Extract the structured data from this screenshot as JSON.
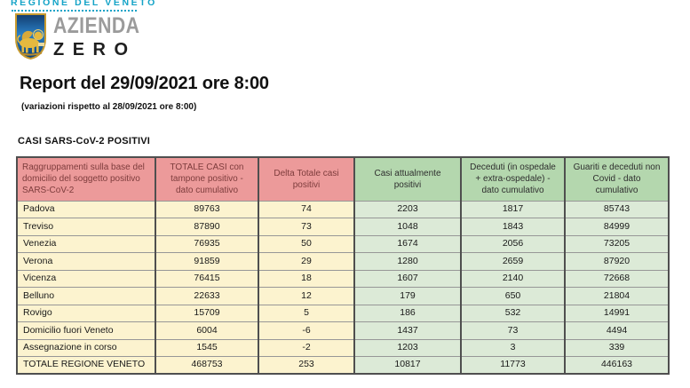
{
  "logo": {
    "region_label": "REGIONE DEL VENETO",
    "org_line1": "AZIENDA",
    "org_line2": "ZERO"
  },
  "header": {
    "title": "Report del 29/09/2021 ore 8:00",
    "subtitle": "(variazioni rispetto al 28/09/2021 ore 8:00)"
  },
  "section_title": "CASI SARS-CoV-2 POSITIVI",
  "table": {
    "columns": [
      {
        "label": "Raggruppamenti sulla base del domicilio del soggetto positivo SARS-CoV-2",
        "group": "red"
      },
      {
        "label": "TOTALE CASI con tampone positivo -dato cumulativo",
        "group": "red"
      },
      {
        "label": "Delta Totale casi positivi",
        "group": "red"
      },
      {
        "label": "Casi attualmente positivi",
        "group": "green"
      },
      {
        "label": "Deceduti (in ospedale + extra-ospedale) -dato cumulativo",
        "group": "green"
      },
      {
        "label": "Guariti e deceduti non Covid - dato cumulativo",
        "group": "green"
      }
    ],
    "rows": [
      {
        "name": "Padova",
        "values": [
          "89763",
          "74",
          "2203",
          "1817",
          "85743"
        ]
      },
      {
        "name": "Treviso",
        "values": [
          "87890",
          "73",
          "1048",
          "1843",
          "84999"
        ]
      },
      {
        "name": "Venezia",
        "values": [
          "76935",
          "50",
          "1674",
          "2056",
          "73205"
        ]
      },
      {
        "name": "Verona",
        "values": [
          "91859",
          "29",
          "1280",
          "2659",
          "87920"
        ]
      },
      {
        "name": "Vicenza",
        "values": [
          "76415",
          "18",
          "1607",
          "2140",
          "72668"
        ]
      },
      {
        "name": "Belluno",
        "values": [
          "22633",
          "12",
          "179",
          "650",
          "21804"
        ]
      },
      {
        "name": "Rovigo",
        "values": [
          "15709",
          "5",
          "186",
          "532",
          "14991"
        ]
      },
      {
        "name": "Domicilio fuori Veneto",
        "values": [
          "6004",
          "-6",
          "1437",
          "73",
          "4494"
        ]
      },
      {
        "name": "Assegnazione in corso",
        "values": [
          "1545",
          "-2",
          "1203",
          "3",
          "339"
        ]
      },
      {
        "name": "TOTALE REGIONE VENETO",
        "values": [
          "468753",
          "253",
          "10817",
          "11773",
          "446163"
        ],
        "is_total": true
      }
    ]
  },
  "colors": {
    "teal_logo": "#14a3c7",
    "red_header_bg": "#ec9a9a",
    "red_header_text": "#7d3c3c",
    "yellow_cell_bg": "#fcf3cf",
    "green_header_bg": "#b4d7ae",
    "green_cell_bg": "#dcead7"
  }
}
